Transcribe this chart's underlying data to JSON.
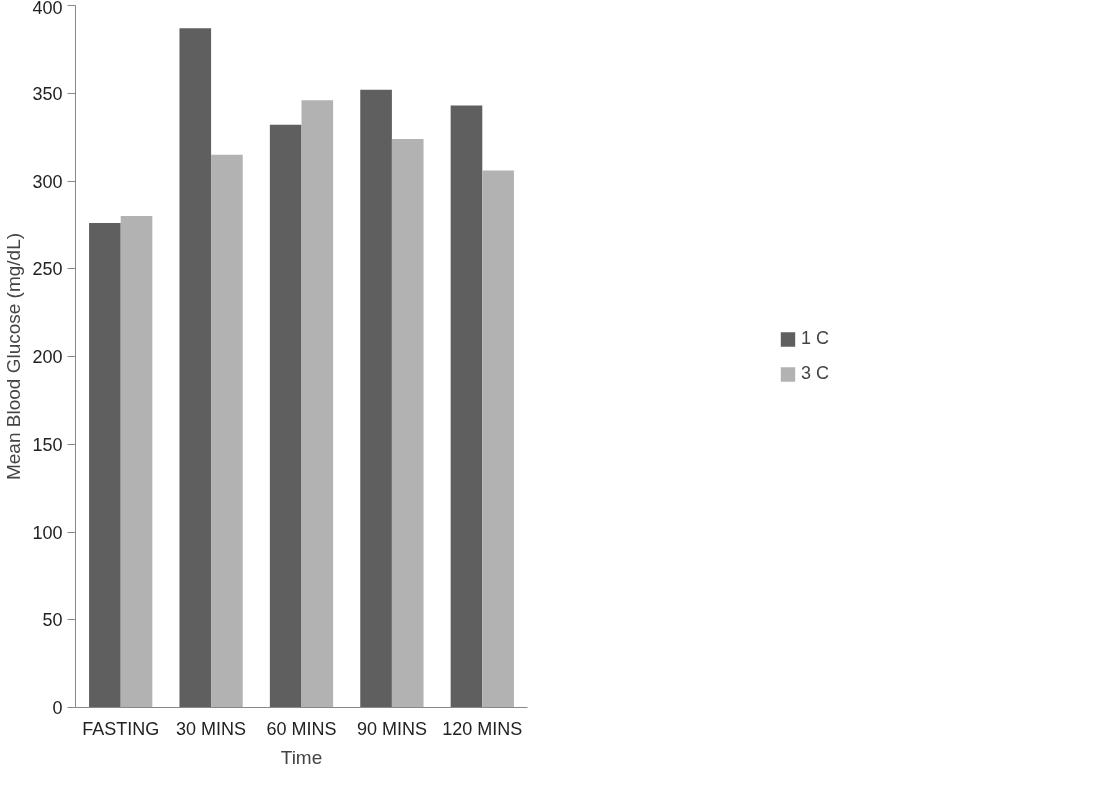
{
  "chart_data": {
    "type": "bar",
    "xlabel": "Time",
    "ylabel": "Mean Blood Glucose (mg/dL)",
    "categories": [
      "FASTING",
      "30 MINS",
      "60 MINS",
      "90 MINS",
      "120 MINS"
    ],
    "series": [
      {
        "name": "1 C",
        "color": "#5f5f5f",
        "values": [
          276,
          387,
          332,
          352,
          343
        ]
      },
      {
        "name": "3 C",
        "color": "#b2b2b2",
        "values": [
          280,
          315,
          346,
          324,
          306
        ]
      }
    ],
    "ylim": [
      0,
      400
    ],
    "yticks": [
      0,
      50,
      100,
      150,
      200,
      250,
      300,
      350,
      400
    ],
    "grid": false,
    "legend": "right"
  }
}
